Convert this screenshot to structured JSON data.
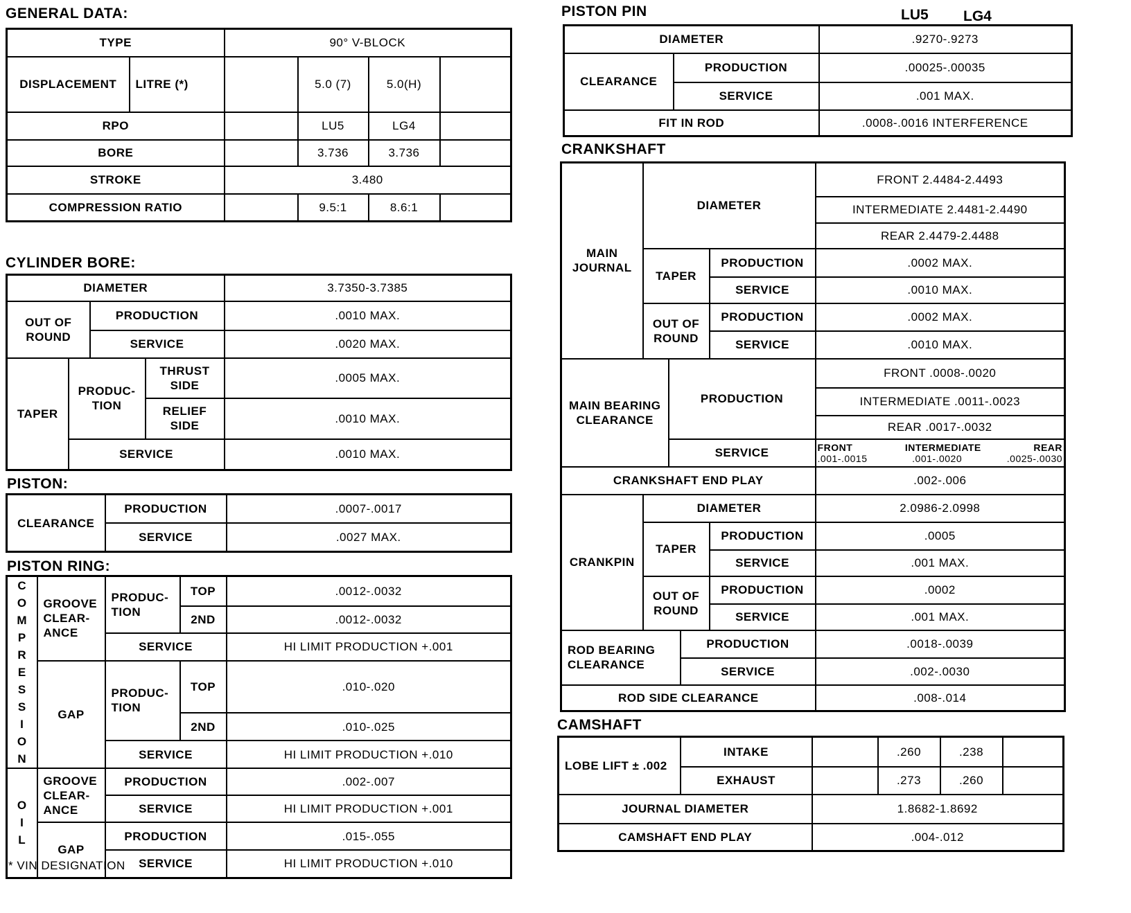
{
  "general": {
    "title": "GENERAL DATA:",
    "type_label": "TYPE",
    "type_value": "90° V-BLOCK",
    "displacement": "DISPLACEMENT",
    "litre": "LITRE (*)",
    "disp_lu5": "5.0 (7)",
    "disp_lg4": "5.0(H)",
    "rpo": "RPO",
    "rpo_lu5": "LU5",
    "rpo_lg4": "LG4",
    "bore": "BORE",
    "bore_lu5": "3.736",
    "bore_lg4": "3.736",
    "stroke": "STROKE",
    "stroke_value": "3.480",
    "compression": "COMPRESSION RATIO",
    "comp_lu5": "9.5:1",
    "comp_lg4": "8.6:1"
  },
  "cylinder_bore": {
    "title": "CYLINDER BORE:",
    "diameter": "DIAMETER",
    "diameter_value": "3.7350-3.7385",
    "out_of_round": "OUT OF ROUND",
    "production": "PRODUCTION",
    "oor_prod": ".0010 MAX.",
    "service": "SERVICE",
    "oor_serv": ".0020 MAX.",
    "taper": "TAPER",
    "production_split": "PRODUC- TION",
    "thrust": "THRUST SIDE",
    "thrust_value": ".0005 MAX.",
    "relief": "RELIEF SIDE",
    "relief_value": ".0010 MAX.",
    "taper_service": "SERVICE",
    "taper_serv_value": ".0010 MAX."
  },
  "piston": {
    "title": "PISTON:",
    "clearance": "CLEARANCE",
    "production": "PRODUCTION",
    "prod_value": ".0007-.0017",
    "service": "SERVICE",
    "serv_value": ".0027 MAX."
  },
  "piston_ring": {
    "title": "PISTON RING:",
    "compression": [
      "C",
      "O",
      "M",
      "P",
      "R",
      "E",
      "S",
      "S",
      "I",
      "O",
      "N"
    ],
    "oil": [
      "O",
      "I",
      "L"
    ],
    "groove": "GROOVE CLEAR- ANCE",
    "gap": "GAP",
    "production_split": "PRODUC- TION",
    "top": "TOP",
    "second": "2ND",
    "service": "SERVICE",
    "production": "PRODUCTION",
    "groove_top": ".0012-.0032",
    "groove_2nd": ".0012-.0032",
    "groove_serv": "HI LIMIT PRODUCTION +.001",
    "gap_top": ".010-.020",
    "gap_2nd": ".010-.025",
    "gap_serv": "HI LIMIT PRODUCTION +.010",
    "oil_groove_prod": ".002-.007",
    "oil_groove_serv": "HI LIMIT PRODUCTION +.001",
    "oil_gap_prod": ".015-.055",
    "oil_gap_serv": "HI LIMIT PRODUCTION +.010"
  },
  "footnote": "* VIN DESIGNATION",
  "piston_pin": {
    "title": "PISTON PIN",
    "col_lu5": "LU5",
    "col_lg4": "LG4",
    "diameter": "DIAMETER",
    "diameter_value": ".9270-.9273",
    "clearance": "CLEARANCE",
    "production": "PRODUCTION",
    "prod_value": ".00025-.00035",
    "service": "SERVICE",
    "serv_value": ".001 MAX.",
    "fit": "FIT IN ROD",
    "fit_value": ".0008-.0016 INTERFERENCE"
  },
  "crankshaft": {
    "title": "CRANKSHAFT",
    "main_journal": "MAIN JOURNAL",
    "diameter": "DIAMETER",
    "mj_front": "FRONT  2.4484-2.4493",
    "mj_inter": "INTERMEDIATE  2.4481-2.4490",
    "mj_rear": "REAR  2.4479-2.4488",
    "taper": "TAPER",
    "production": "PRODUCTION",
    "service": "SERVICE",
    "mj_taper_prod": ".0002 MAX.",
    "mj_taper_serv": ".0010 MAX.",
    "out_of_round": "OUT OF ROUND",
    "mj_oor_prod": ".0002 MAX.",
    "mj_oor_serv": ".0010 MAX.",
    "main_bearing": "MAIN BEARING CLEARANCE",
    "mb_front": "FRONT  .0008-.0020",
    "mb_inter": "INTERMEDIATE  .0011-.0023",
    "mb_rear": "REAR  .0017-.0032",
    "mb_serv_front_label": "FRONT",
    "mb_serv_front": ".001-.0015",
    "mb_serv_inter_label": "INTERMEDIATE",
    "mb_serv_inter": ".001-.0020",
    "mb_serv_rear_label": "REAR",
    "mb_serv_rear": ".0025-.0030",
    "end_play": "CRANKSHAFT END PLAY",
    "end_play_value": ".002-.006",
    "crankpin": "CRANKPIN",
    "cp_diameter": "2.0986-2.0998",
    "cp_taper_prod": ".0005",
    "cp_taper_serv": ".001 MAX.",
    "cp_oor_prod": ".0002",
    "cp_oor_serv": ".001 MAX.",
    "rod_bearing": "ROD BEARING CLEARANCE",
    "rb_prod": ".0018-.0039",
    "rb_serv": ".002-.0030",
    "rod_side": "ROD SIDE CLEARANCE",
    "rod_side_value": ".008-.014"
  },
  "camshaft": {
    "title": "CAMSHAFT",
    "lobe_lift": "LOBE LIFT ± .002",
    "intake": "INTAKE",
    "intake_lu5": ".260",
    "intake_lg4": ".238",
    "exhaust": "EXHAUST",
    "exhaust_lu5": ".273",
    "exhaust_lg4": ".260",
    "journal": "JOURNAL DIAMETER",
    "journal_value": "1.8682-1.8692",
    "end_play": "CAMSHAFT END PLAY",
    "end_play_value": ".004-.012"
  }
}
